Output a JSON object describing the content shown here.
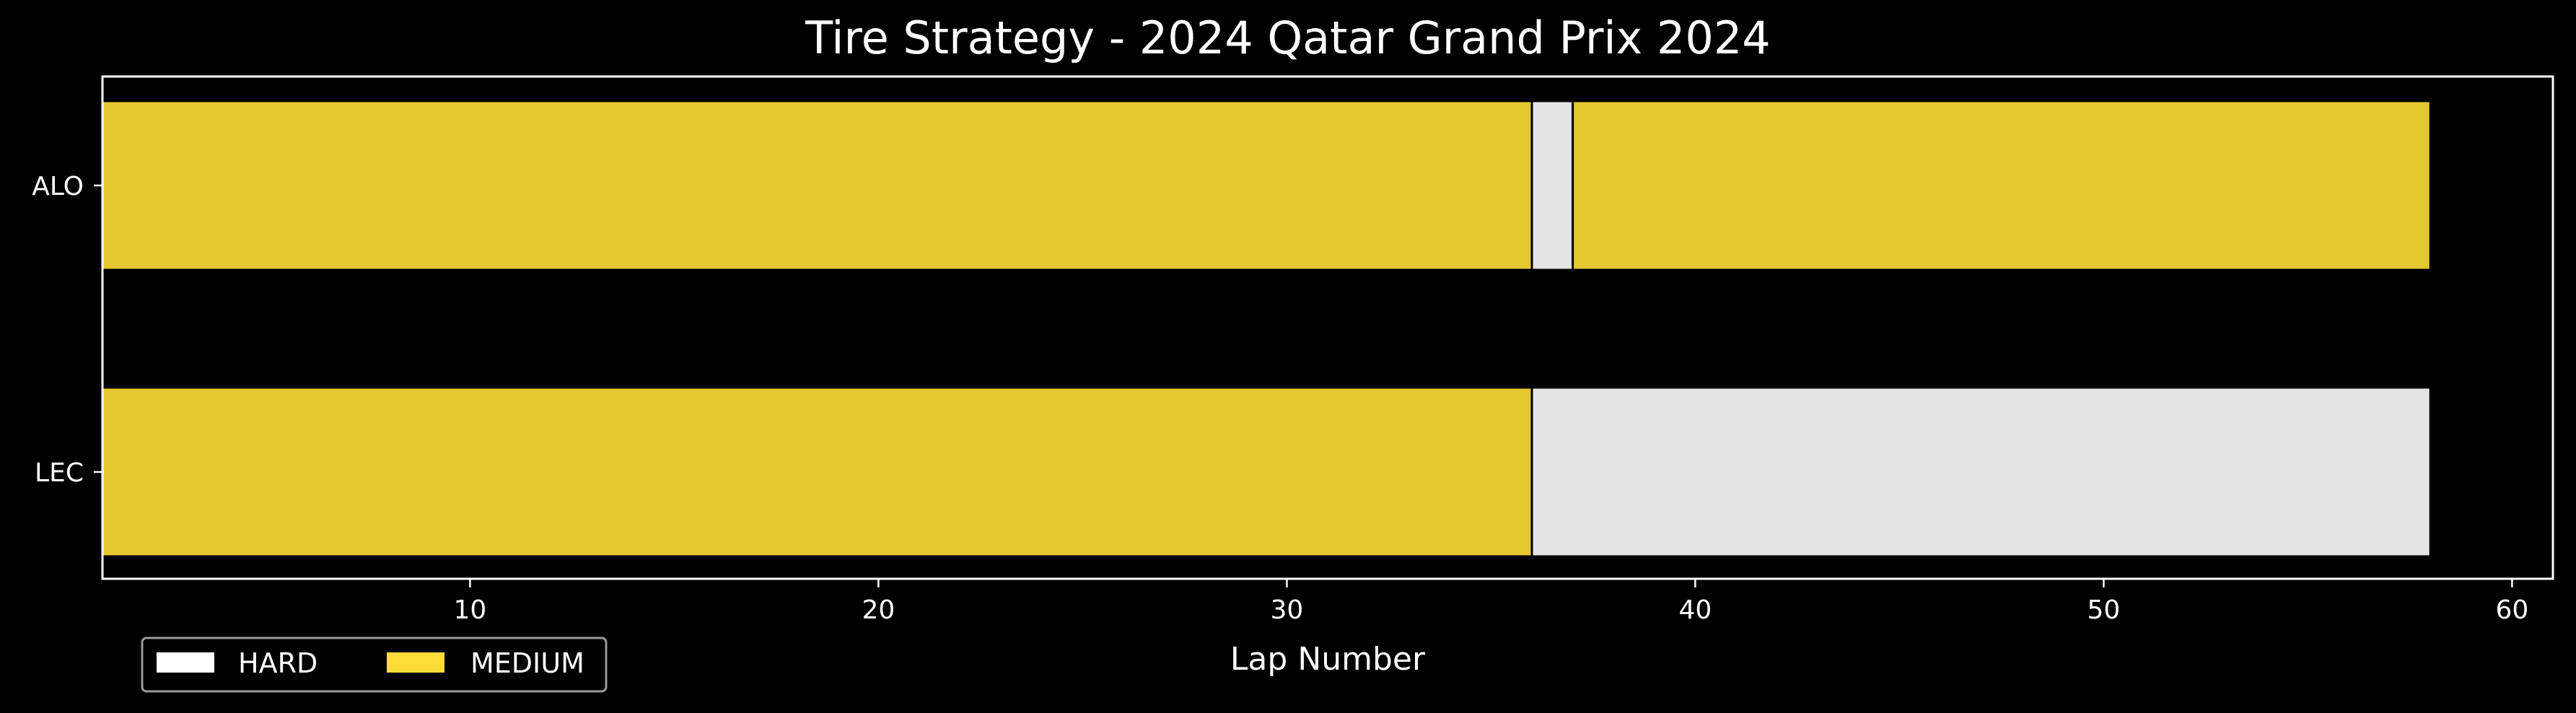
{
  "chart_data": {
    "type": "bar",
    "orientation": "horizontal-stacked",
    "title": "Tire Strategy - 2024 Qatar Grand Prix 2024",
    "xlabel": "Lap Number",
    "ylabel": "",
    "xlim": [
      1,
      61
    ],
    "xticks": [
      10,
      20,
      30,
      40,
      50,
      60
    ],
    "grid": false,
    "legend_position": "bottom-left",
    "background": "#000000",
    "compound_colors": {
      "HARD": "#e4e4e4",
      "MEDIUM": "#e5c72f"
    },
    "legend": [
      {
        "label": "HARD",
        "color": "#ffffff"
      },
      {
        "label": "MEDIUM",
        "color": "#fedd3a"
      }
    ],
    "drivers": [
      {
        "name": "ALO",
        "stints": [
          {
            "compound": "MEDIUM",
            "start": 1,
            "end": 36
          },
          {
            "compound": "HARD",
            "start": 36,
            "end": 37
          },
          {
            "compound": "MEDIUM",
            "start": 37,
            "end": 58
          }
        ]
      },
      {
        "name": "LEC",
        "stints": [
          {
            "compound": "MEDIUM",
            "start": 1,
            "end": 36
          },
          {
            "compound": "HARD",
            "start": 36,
            "end": 58
          }
        ]
      }
    ]
  }
}
